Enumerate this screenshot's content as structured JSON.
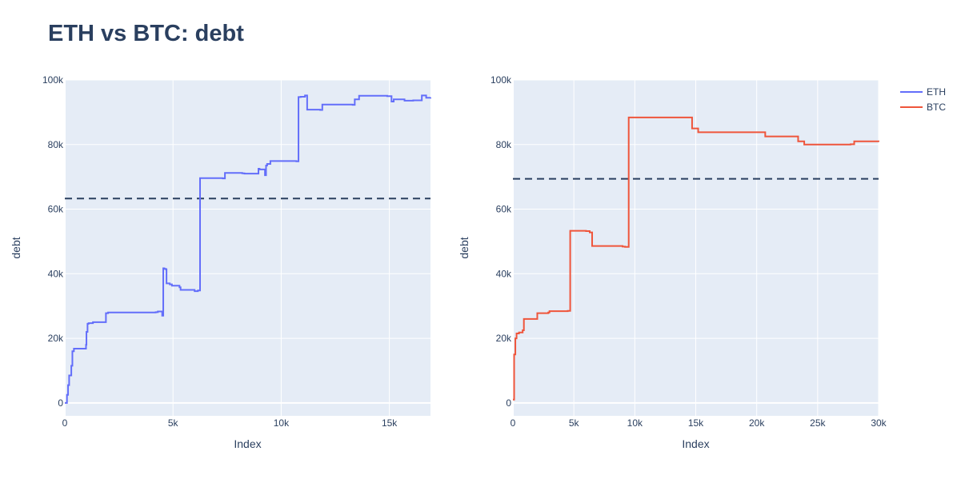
{
  "title": "ETH vs BTC: debt",
  "chart_data": [
    {
      "type": "line",
      "line_shape": "step",
      "xlabel": "Index",
      "ylabel": "debt",
      "xlim": [
        0,
        16900
      ],
      "ylim": [
        -4000,
        100000
      ],
      "x_ticks": [
        0,
        5000,
        10000,
        15000
      ],
      "x_tick_labels": [
        "0",
        "5k",
        "10k",
        "15k"
      ],
      "y_ticks": [
        0,
        20000,
        40000,
        60000,
        80000,
        100000
      ],
      "y_tick_labels": [
        "0",
        "20k",
        "40k",
        "60k",
        "80k",
        "100k"
      ],
      "grid": true,
      "reference_line": {
        "y": 63300,
        "style": "dashed",
        "color": "#2a3f5f"
      },
      "series": [
        {
          "name": "ETH",
          "color": "#636efa",
          "x": [
            0,
            100,
            150,
            200,
            300,
            350,
            420,
            980,
            1000,
            1050,
            1100,
            1300,
            1900,
            2000,
            4200,
            4300,
            4500,
            4550,
            4600,
            4680,
            4700,
            4850,
            4950,
            5300,
            5350,
            6000,
            6150,
            6250,
            7300,
            7400,
            8200,
            8300,
            8950,
            9000,
            9250,
            9300,
            9350,
            9500,
            10700,
            10800,
            10900,
            11100,
            11200,
            11800,
            11900,
            13300,
            13400,
            13600,
            14900,
            15100,
            15200,
            15700,
            16100,
            16500,
            16700,
            16900
          ],
          "y": [
            0,
            2500,
            5500,
            8500,
            11500,
            16000,
            16800,
            18000,
            22000,
            24500,
            24700,
            25000,
            27800,
            28000,
            28100,
            28300,
            27000,
            41700,
            41500,
            41300,
            37000,
            36700,
            36300,
            35800,
            35000,
            34600,
            34800,
            69600,
            69500,
            71200,
            71100,
            71000,
            72500,
            72300,
            70500,
            73500,
            74000,
            74900,
            74800,
            94700,
            94800,
            95200,
            90800,
            90700,
            92400,
            92300,
            94000,
            95100,
            95000,
            93300,
            94000,
            93600,
            93700,
            95200,
            94500,
            94600
          ]
        }
      ]
    },
    {
      "type": "line",
      "line_shape": "step",
      "xlabel": "Index",
      "ylabel": "debt",
      "xlim": [
        0,
        30000
      ],
      "ylim": [
        -4000,
        100000
      ],
      "x_ticks": [
        0,
        5000,
        10000,
        15000,
        20000,
        25000,
        30000
      ],
      "x_tick_labels": [
        "0",
        "5k",
        "10k",
        "15k",
        "20k",
        "25k",
        "30k"
      ],
      "y_ticks": [
        0,
        20000,
        40000,
        60000,
        80000,
        100000
      ],
      "y_tick_labels": [
        "0",
        "20k",
        "40k",
        "60k",
        "80k",
        "100k"
      ],
      "grid": true,
      "reference_line": {
        "y": 69400,
        "style": "dashed",
        "color": "#2a3f5f"
      },
      "series": [
        {
          "name": "BTC",
          "color": "#ef553b",
          "x": [
            0,
            100,
            200,
            300,
            500,
            800,
            900,
            2000,
            2900,
            3000,
            4500,
            4700,
            6000,
            6300,
            6500,
            9000,
            9200,
            9500,
            14700,
            15200,
            20700,
            23400,
            23900,
            27700,
            28000,
            30000
          ],
          "y": [
            1000,
            15000,
            20000,
            21500,
            21800,
            22500,
            26000,
            27800,
            28000,
            28400,
            28500,
            53300,
            53200,
            52800,
            48600,
            48400,
            48300,
            88400,
            85000,
            83800,
            82500,
            81000,
            80000,
            80100,
            81000,
            80800
          ]
        }
      ]
    }
  ],
  "legend": {
    "placement": "top-right",
    "items": [
      {
        "name": "ETH",
        "color": "#636efa"
      },
      {
        "name": "BTC",
        "color": "#ef553b"
      }
    ]
  }
}
